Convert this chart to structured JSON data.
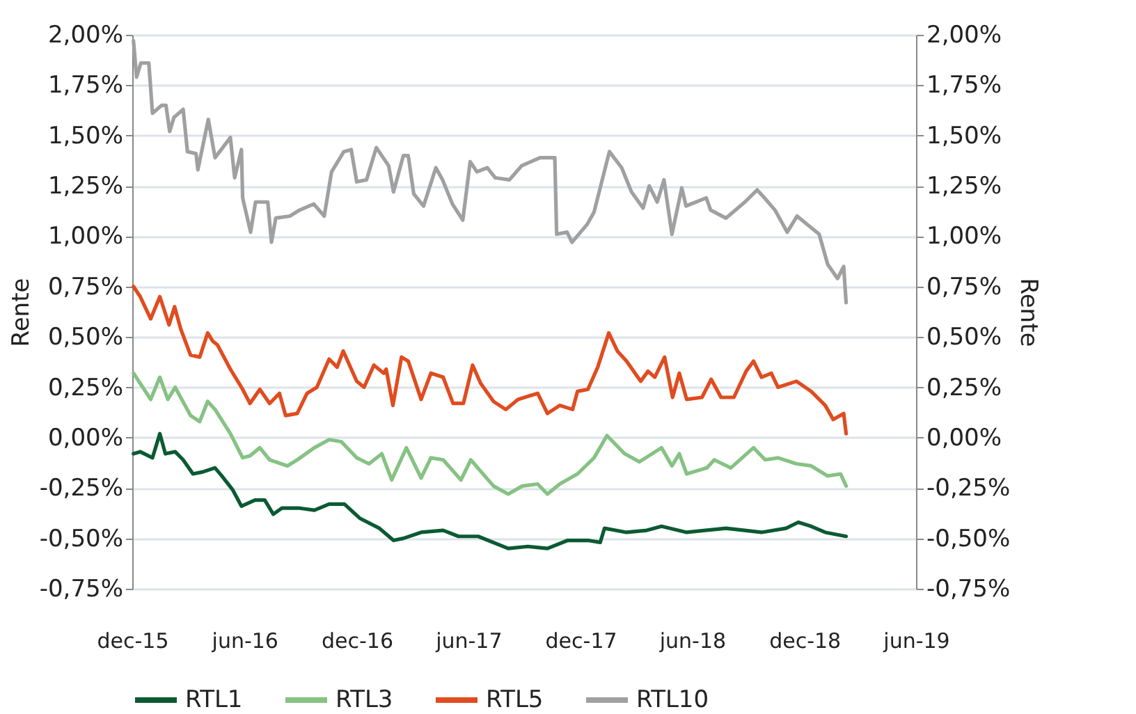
{
  "chart_data": {
    "type": "line",
    "ylabel": "Rente",
    "y2label": "Rente",
    "xlim": [
      "2015-12-01",
      "2019-06-01"
    ],
    "xticks": [
      {
        "value": "2015-12-01",
        "label": "dec-15"
      },
      {
        "value": "2016-06-01",
        "label": "jun-16"
      },
      {
        "value": "2016-12-01",
        "label": "dec-16"
      },
      {
        "value": "2017-06-01",
        "label": "jun-17"
      },
      {
        "value": "2017-12-01",
        "label": "dec-17"
      },
      {
        "value": "2018-06-01",
        "label": "jun-18"
      },
      {
        "value": "2018-12-01",
        "label": "dec-18"
      },
      {
        "value": "2019-06-01",
        "label": "jun-19"
      }
    ],
    "ylim": [
      -0.75,
      2.0
    ],
    "yticks": [
      {
        "value": -0.75,
        "label": "-0,75%"
      },
      {
        "value": -0.5,
        "label": "-0,50%"
      },
      {
        "value": -0.25,
        "label": "-0,25%"
      },
      {
        "value": 0,
        "label": "0,00%"
      },
      {
        "value": 0.25,
        "label": "0,25%"
      },
      {
        "value": 0.5,
        "label": "0,50%"
      },
      {
        "value": 0.75,
        "label": "0,75%"
      },
      {
        "value": 1.0,
        "label": "1,00%"
      },
      {
        "value": 1.25,
        "label": "1,25%"
      },
      {
        "value": 1.5,
        "label": "1,50%"
      },
      {
        "value": 1.75,
        "label": "1,75%"
      },
      {
        "value": 2.0,
        "label": "2,00%"
      }
    ],
    "y2lim": [
      -0.75,
      2.0
    ],
    "y2ticks": [
      {
        "value": -0.75,
        "label": "-0,75%"
      },
      {
        "value": -0.5,
        "label": "-0,50%"
      },
      {
        "value": -0.25,
        "label": "-0,25%"
      },
      {
        "value": 0,
        "label": "0,00%"
      },
      {
        "value": 0.25,
        "label": "0,25%"
      },
      {
        "value": 0.5,
        "label": "0,50%"
      },
      {
        "value": 0.75,
        "label": "0,75%"
      },
      {
        "value": 1.0,
        "label": "1,00%"
      },
      {
        "value": 1.25,
        "label": "1,25%"
      },
      {
        "value": 1.5,
        "label": "1,50%"
      },
      {
        "value": 1.75,
        "label": "1,75%"
      },
      {
        "value": 2.0,
        "label": "2,00%"
      }
    ],
    "grid": "y",
    "legend": "bottom",
    "marker": "none",
    "line_style": "solid",
    "series": [
      {
        "name": "RTL1",
        "color": "#0b5a32",
        "x": [
          "2015-12-03",
          "2015-12-14",
          "2016-01-03",
          "2016-01-15",
          "2016-01-24",
          "2016-02-09",
          "2016-02-22",
          "2016-03-09",
          "2016-03-25",
          "2016-04-14",
          "2016-04-25",
          "2016-05-13",
          "2016-05-27",
          "2016-06-18",
          "2016-07-04",
          "2016-07-18",
          "2016-08-01",
          "2016-08-30",
          "2016-09-23",
          "2016-10-17",
          "2016-11-11",
          "2016-12-06",
          "2017-01-07",
          "2017-01-30",
          "2017-02-15",
          "2017-03-16",
          "2017-04-21",
          "2017-05-16",
          "2017-06-17",
          "2017-08-05",
          "2017-09-06",
          "2017-10-08",
          "2017-11-10",
          "2017-12-13",
          "2018-01-02",
          "2018-01-09",
          "2018-02-14",
          "2018-03-19",
          "2018-04-12",
          "2018-05-23",
          "2018-07-26",
          "2018-09-22",
          "2018-11-01",
          "2018-11-21",
          "2018-12-12",
          "2019-01-04",
          "2019-02-07"
        ],
        "values": [
          -0.08,
          -0.07,
          -0.1,
          0.02,
          -0.08,
          -0.07,
          -0.11,
          -0.18,
          -0.17,
          -0.15,
          -0.19,
          -0.26,
          -0.34,
          -0.31,
          -0.31,
          -0.38,
          -0.35,
          -0.35,
          -0.36,
          -0.33,
          -0.33,
          -0.4,
          -0.45,
          -0.51,
          -0.5,
          -0.47,
          -0.46,
          -0.49,
          -0.49,
          -0.55,
          -0.54,
          -0.55,
          -0.51,
          -0.51,
          -0.52,
          -0.45,
          -0.47,
          -0.46,
          -0.44,
          -0.47,
          -0.45,
          -0.47,
          -0.45,
          -0.42,
          -0.44,
          -0.47,
          -0.49
        ]
      },
      {
        "name": "RTL3",
        "color": "#86c283",
        "x": [
          "2015-12-03",
          "2015-12-31",
          "2016-01-15",
          "2016-01-28",
          "2016-02-09",
          "2016-03-05",
          "2016-03-20",
          "2016-04-02",
          "2016-04-14",
          "2016-05-09",
          "2016-05-29",
          "2016-06-10",
          "2016-06-26",
          "2016-07-12",
          "2016-08-10",
          "2016-08-26",
          "2016-09-23",
          "2016-10-17",
          "2016-11-06",
          "2016-12-01",
          "2016-12-21",
          "2017-01-11",
          "2017-01-27",
          "2017-02-20",
          "2017-03-16",
          "2017-04-01",
          "2017-04-21",
          "2017-05-20",
          "2017-06-05",
          "2017-07-12",
          "2017-08-05",
          "2017-08-28",
          "2017-09-22",
          "2017-10-08",
          "2017-10-28",
          "2017-11-26",
          "2017-12-23",
          "2018-01-13",
          "2018-02-11",
          "2018-03-07",
          "2018-04-12",
          "2018-04-29",
          "2018-05-11",
          "2018-05-23",
          "2018-06-25",
          "2018-07-07",
          "2018-08-03",
          "2018-09-09",
          "2018-09-28",
          "2018-10-19",
          "2018-11-18",
          "2018-12-12",
          "2019-01-08",
          "2019-01-29",
          "2019-02-07"
        ],
        "values": [
          0.32,
          0.19,
          0.3,
          0.19,
          0.25,
          0.11,
          0.08,
          0.18,
          0.14,
          0.02,
          -0.1,
          -0.09,
          -0.05,
          -0.11,
          -0.14,
          -0.11,
          -0.05,
          -0.01,
          -0.02,
          -0.1,
          -0.13,
          -0.08,
          -0.21,
          -0.05,
          -0.2,
          -0.1,
          -0.11,
          -0.21,
          -0.11,
          -0.24,
          -0.28,
          -0.24,
          -0.23,
          -0.28,
          -0.23,
          -0.18,
          -0.1,
          0.01,
          -0.08,
          -0.12,
          -0.05,
          -0.14,
          -0.08,
          -0.18,
          -0.15,
          -0.11,
          -0.15,
          -0.05,
          -0.11,
          -0.1,
          -0.13,
          -0.14,
          -0.19,
          -0.18,
          -0.24
        ]
      },
      {
        "name": "RTL5",
        "color": "#e04c1f",
        "x": [
          "2015-12-03",
          "2015-12-14",
          "2015-12-31",
          "2016-01-15",
          "2016-01-30",
          "2016-02-08",
          "2016-02-18",
          "2016-03-05",
          "2016-03-20",
          "2016-04-02",
          "2016-04-10",
          "2016-04-18",
          "2016-05-09",
          "2016-05-29",
          "2016-06-10",
          "2016-06-26",
          "2016-07-12",
          "2016-07-28",
          "2016-08-07",
          "2016-08-26",
          "2016-09-11",
          "2016-09-27",
          "2016-10-17",
          "2016-10-30",
          "2016-11-09",
          "2016-12-01",
          "2016-12-13",
          "2016-12-29",
          "2017-01-14",
          "2017-01-18",
          "2017-01-29",
          "2017-02-12",
          "2017-02-23",
          "2017-03-16",
          "2017-04-01",
          "2017-04-21",
          "2017-05-07",
          "2017-05-24",
          "2017-06-08",
          "2017-06-21",
          "2017-07-12",
          "2017-08-01",
          "2017-08-21",
          "2017-09-22",
          "2017-10-08",
          "2017-10-28",
          "2017-11-18",
          "2017-11-26",
          "2017-12-13",
          "2017-12-29",
          "2018-01-16",
          "2018-01-30",
          "2018-02-14",
          "2018-03-09",
          "2018-03-21",
          "2018-04-01",
          "2018-04-17",
          "2018-04-30",
          "2018-05-11",
          "2018-05-23",
          "2018-06-17",
          "2018-07-02",
          "2018-07-18",
          "2018-08-08",
          "2018-08-28",
          "2018-09-09",
          "2018-09-22",
          "2018-10-08",
          "2018-10-19",
          "2018-11-18",
          "2018-12-12",
          "2019-01-04",
          "2019-01-17",
          "2019-02-03",
          "2019-02-07"
        ],
        "values": [
          0.75,
          0.7,
          0.59,
          0.7,
          0.56,
          0.65,
          0.54,
          0.41,
          0.4,
          0.52,
          0.48,
          0.46,
          0.34,
          0.24,
          0.17,
          0.24,
          0.17,
          0.22,
          0.11,
          0.12,
          0.22,
          0.25,
          0.39,
          0.35,
          0.43,
          0.28,
          0.25,
          0.36,
          0.32,
          0.34,
          0.16,
          0.4,
          0.38,
          0.19,
          0.32,
          0.3,
          0.17,
          0.17,
          0.36,
          0.27,
          0.18,
          0.14,
          0.19,
          0.22,
          0.12,
          0.16,
          0.14,
          0.23,
          0.24,
          0.35,
          0.52,
          0.43,
          0.38,
          0.28,
          0.33,
          0.3,
          0.4,
          0.2,
          0.32,
          0.19,
          0.2,
          0.29,
          0.2,
          0.2,
          0.33,
          0.38,
          0.3,
          0.32,
          0.25,
          0.28,
          0.23,
          0.16,
          0.09,
          0.12,
          0.02
        ]
      },
      {
        "name": "RTL10",
        "color": "#a0a0a0",
        "x": [
          "2015-12-03",
          "2015-12-08",
          "2015-12-15",
          "2015-12-28",
          "2016-01-03",
          "2016-01-18",
          "2016-01-25",
          "2016-01-31",
          "2016-02-07",
          "2016-02-22",
          "2016-02-29",
          "2016-03-14",
          "2016-03-17",
          "2016-04-03",
          "2016-04-14",
          "2016-05-09",
          "2016-05-16",
          "2016-05-27",
          "2016-05-29",
          "2016-06-11",
          "2016-06-19",
          "2016-07-09",
          "2016-07-15",
          "2016-07-22",
          "2016-08-14",
          "2016-08-30",
          "2016-09-22",
          "2016-10-09",
          "2016-10-21",
          "2016-11-10",
          "2016-11-22",
          "2016-12-01",
          "2016-12-17",
          "2017-01-02",
          "2017-01-22",
          "2017-01-30",
          "2017-02-15",
          "2017-02-23",
          "2017-03-04",
          "2017-03-20",
          "2017-04-09",
          "2017-04-20",
          "2017-05-06",
          "2017-05-23",
          "2017-06-04",
          "2017-06-15",
          "2017-07-02",
          "2017-07-15",
          "2017-08-07",
          "2017-08-27",
          "2017-09-26",
          "2017-10-20",
          "2017-10-23",
          "2017-11-09",
          "2017-11-17",
          "2017-12-12",
          "2017-12-23",
          "2018-01-17",
          "2018-02-06",
          "2018-02-22",
          "2018-03-13",
          "2018-03-23",
          "2018-04-05",
          "2018-04-16",
          "2018-04-29",
          "2018-05-15",
          "2018-05-22",
          "2018-06-24",
          "2018-07-01",
          "2018-07-26",
          "2018-08-26",
          "2018-09-15",
          "2018-09-27",
          "2018-10-14",
          "2018-11-03",
          "2018-11-19",
          "2018-12-09",
          "2018-12-25",
          "2019-01-08",
          "2019-01-24",
          "2019-02-03",
          "2019-02-07"
        ],
        "values": [
          1.97,
          1.79,
          1.86,
          1.86,
          1.61,
          1.65,
          1.65,
          1.52,
          1.59,
          1.63,
          1.42,
          1.41,
          1.33,
          1.58,
          1.39,
          1.49,
          1.29,
          1.43,
          1.19,
          1.02,
          1.17,
          1.17,
          0.97,
          1.09,
          1.1,
          1.13,
          1.16,
          1.1,
          1.32,
          1.42,
          1.43,
          1.27,
          1.28,
          1.44,
          1.35,
          1.22,
          1.4,
          1.4,
          1.21,
          1.15,
          1.34,
          1.28,
          1.16,
          1.08,
          1.37,
          1.32,
          1.34,
          1.29,
          1.28,
          1.35,
          1.39,
          1.39,
          1.01,
          1.02,
          0.97,
          1.06,
          1.12,
          1.42,
          1.34,
          1.22,
          1.14,
          1.25,
          1.17,
          1.28,
          1.01,
          1.24,
          1.15,
          1.19,
          1.13,
          1.09,
          1.17,
          1.23,
          1.19,
          1.13,
          1.02,
          1.1,
          1.05,
          1.01,
          0.86,
          0.79,
          0.85,
          0.67
        ]
      }
    ]
  }
}
